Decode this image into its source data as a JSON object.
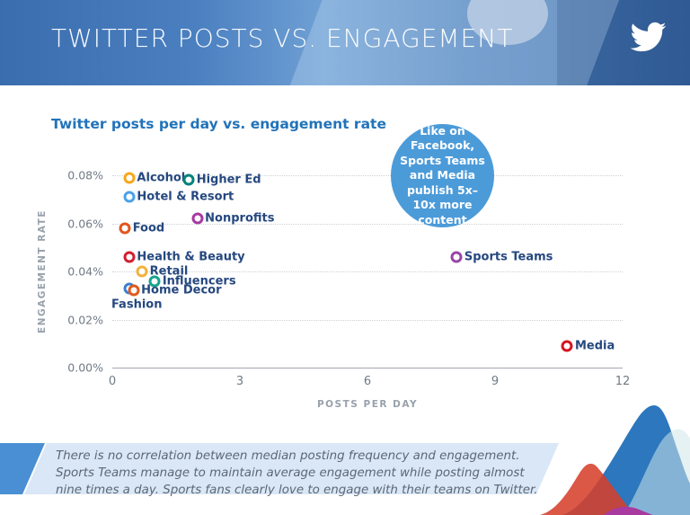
{
  "header": {
    "title": "TWITTER POSTS VS. ENGAGEMENT"
  },
  "callout": {
    "text": "Like on Facebook, Sports Teams and Media publish 5x–10x more content",
    "color": "#4c9bd9"
  },
  "chart_data": {
    "type": "scatter",
    "title": "Twitter posts per day vs. engagement rate",
    "xlabel": "POSTS PER DAY",
    "ylabel": "ENGAGEMENT RATE",
    "xlim": [
      0,
      12
    ],
    "ylim_percent": [
      0,
      0.08
    ],
    "x_ticks": [
      0,
      3,
      6,
      9,
      12
    ],
    "y_tick_labels": [
      "0.00%",
      "0.02%",
      "0.04%",
      "0.06%",
      "0.08%"
    ],
    "grid": "horizontal dotted",
    "legend": "none",
    "points": [
      {
        "label": "Alcohol",
        "x": 0.4,
        "y": 0.079,
        "color": "#f5a81c"
      },
      {
        "label": "Higher Ed",
        "x": 1.8,
        "y": 0.078,
        "color": "#00837a"
      },
      {
        "label": "Hotel & Resort",
        "x": 0.4,
        "y": 0.071,
        "color": "#4ca2e8"
      },
      {
        "label": "Nonprofits",
        "x": 2.0,
        "y": 0.062,
        "color": "#a73aa0"
      },
      {
        "label": "Food",
        "x": 0.3,
        "y": 0.058,
        "color": "#e2561d"
      },
      {
        "label": "Health & Beauty",
        "x": 0.4,
        "y": 0.046,
        "color": "#d11f2f"
      },
      {
        "label": "Retail",
        "x": 0.7,
        "y": 0.04,
        "color": "#f3b13c"
      },
      {
        "label": "Influencers",
        "x": 1.0,
        "y": 0.036,
        "color": "#17a38d"
      },
      {
        "label": "Fashion",
        "x": 0.4,
        "y": 0.033,
        "color": "#3b7fd1",
        "label_dx": -20,
        "label_dy": 18
      },
      {
        "label": "Home Decor",
        "x": 0.5,
        "y": 0.032,
        "color": "#e05a1e"
      },
      {
        "label": "Sports Teams",
        "x": 8.1,
        "y": 0.046,
        "color": "#9747a6"
      },
      {
        "label": "Media",
        "x": 10.7,
        "y": 0.009,
        "color": "#d4151f"
      }
    ]
  },
  "note": {
    "text": "There is no correlation between median posting frequency and engagement. Sports Teams manage to maintain average engagement while posting almost nine times a day. Sports fans clearly love to engage with their teams on Twitter."
  }
}
